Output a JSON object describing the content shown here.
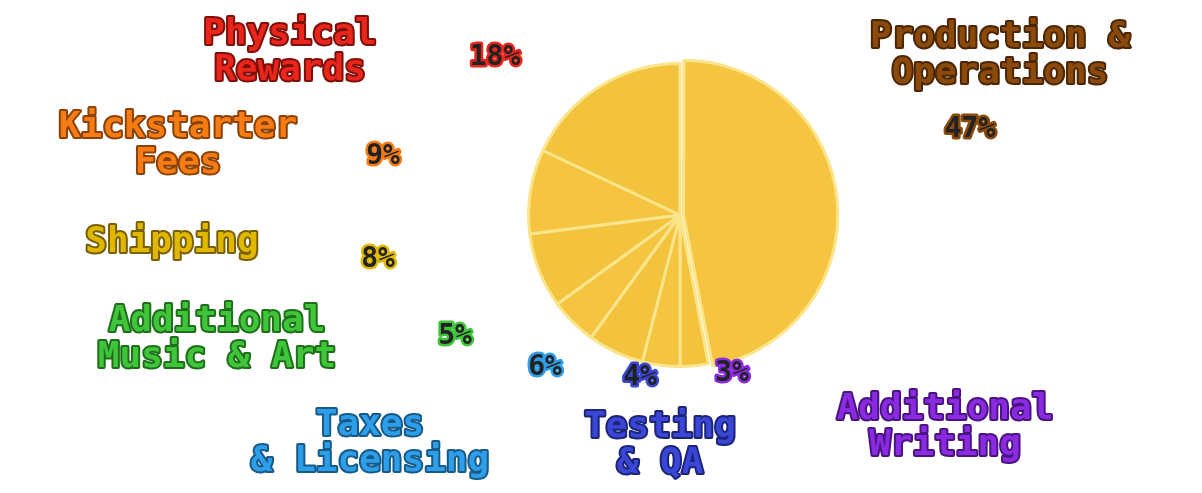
{
  "chart_data": {
    "type": "pie",
    "categories": [
      "Production & Operations",
      "Additional Writing",
      "Testing & QA",
      "Taxes & Licensing",
      "Additional Music & Art",
      "Shipping",
      "Kickstarter Fees",
      "Physical Rewards"
    ],
    "values": [
      47,
      3,
      4,
      6,
      5,
      8,
      9,
      18
    ],
    "value_labels": [
      "47%",
      "3%",
      "4%",
      "6%",
      "5%",
      "8%",
      "9%",
      "18%"
    ],
    "colors": [
      "#f5c542",
      "#f3c33e",
      "#f5c542",
      "#f3c33e",
      "#f5c542",
      "#f3c33e",
      "#f5c542",
      "#f3c33e"
    ],
    "data_labels": true
  }
}
